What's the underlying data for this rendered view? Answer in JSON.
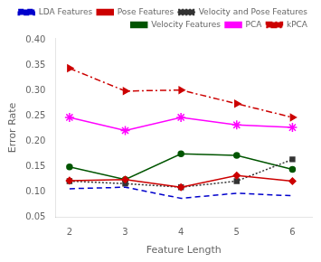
{
  "chart_data": {
    "type": "line",
    "x": [
      2,
      3,
      4,
      5,
      6
    ],
    "series": [
      {
        "name": "LDA Features",
        "color": "#0000CC",
        "values": [
          0.107,
          0.11,
          0.088,
          0.098,
          0.093
        ],
        "marker": "none",
        "line_style": "dashed"
      },
      {
        "name": "Pose Features",
        "color": "#CC0000",
        "values": [
          0.123,
          0.125,
          0.11,
          0.133,
          0.122
        ],
        "marker": "diamond",
        "line_style": "solid"
      },
      {
        "name": "Velocity and Pose Features",
        "color": "#333333",
        "values": [
          0.122,
          0.117,
          0.11,
          0.122,
          0.165
        ],
        "marker": "square",
        "line_style": "dotted"
      },
      {
        "name": "Velocity Features",
        "color": "#005500",
        "values": [
          0.15,
          0.125,
          0.176,
          0.173,
          0.145
        ],
        "marker": "circle",
        "line_style": "solid"
      },
      {
        "name": "PCA",
        "color": "#FF00FF",
        "values": [
          0.248,
          0.222,
          0.248,
          0.233,
          0.228
        ],
        "marker": "star",
        "line_style": "solid"
      },
      {
        "name": "kPCA",
        "color": "#CC0000",
        "values": [
          0.345,
          0.3,
          0.302,
          0.275,
          0.248
        ],
        "marker": "triangle-right",
        "line_style": "dashdot"
      }
    ],
    "xlabel": "Feature Length",
    "ylabel": "Error Rate",
    "xlim": [
      1.75,
      6.35
    ],
    "ylim": [
      0.05,
      0.405
    ],
    "xticks": [
      2,
      3,
      4,
      5,
      6
    ],
    "yticks": [
      0.05,
      {
        "value": 0.1,
        "label": "0.10"
      },
      0.15,
      {
        "value": 0.2,
        "label": "0.20"
      },
      0.25,
      {
        "value": 0.3,
        "label": "0.30"
      },
      0.35,
      {
        "value": 0.4,
        "label": "0.40"
      }
    ],
    "legend": "upper right",
    "grid": false
  }
}
